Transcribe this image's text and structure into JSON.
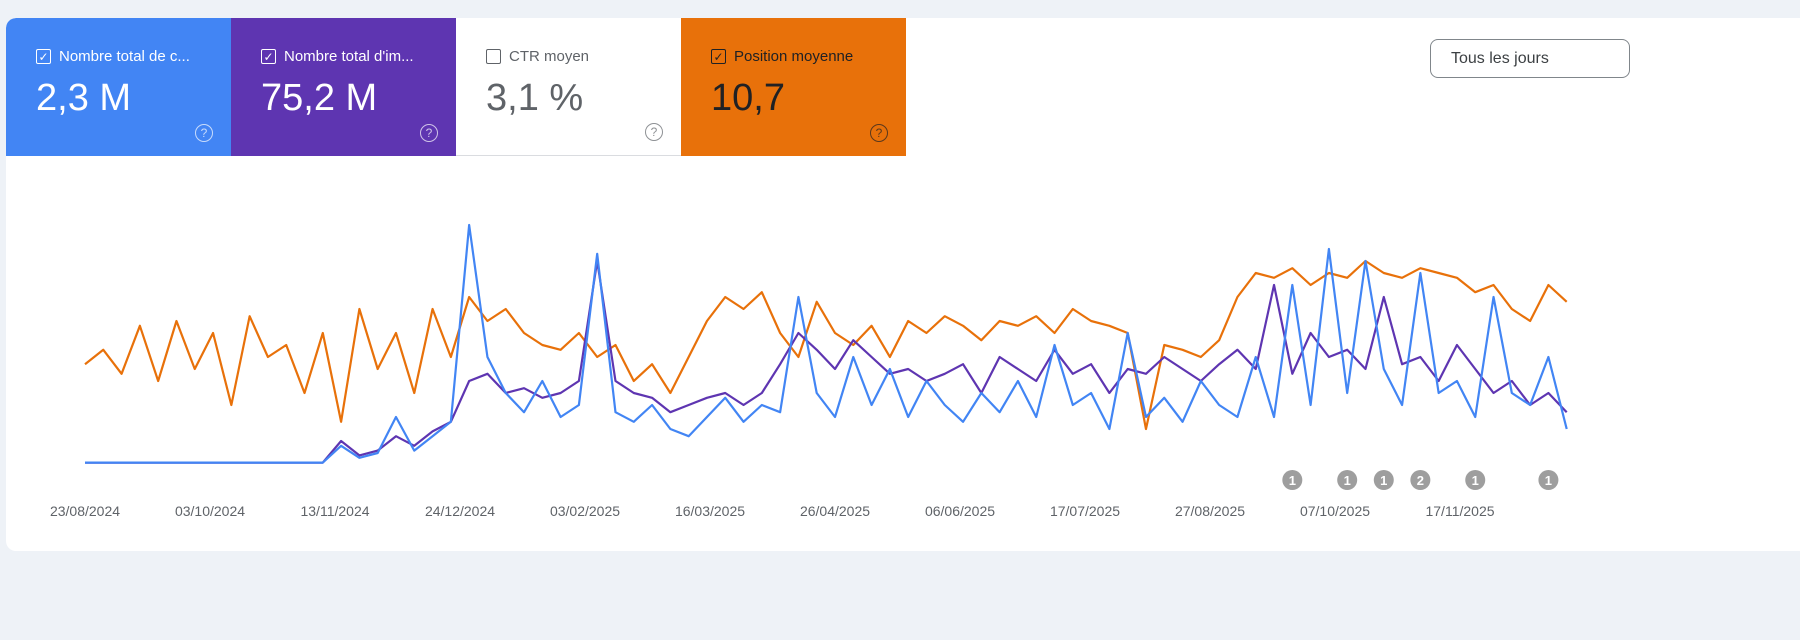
{
  "metrics": [
    {
      "label": "Nombre total de c...",
      "value": "2,3 M",
      "checked": true,
      "color": "#4285f4"
    },
    {
      "label": "Nombre total d'im...",
      "value": "75,2 M",
      "checked": true,
      "color": "#5e35b1"
    },
    {
      "label": "CTR moyen",
      "value": "3,1 %",
      "checked": false
    },
    {
      "label": "Position moyenne",
      "value": "10,7",
      "checked": true,
      "color": "#e8710a"
    }
  ],
  "help_icon": "?",
  "granularity_button": "Tous les jours",
  "chart_data": {
    "type": "line",
    "x_step_days": 6,
    "x_start": "23/08/2024",
    "xticks": [
      "23/08/2024",
      "03/10/2024",
      "13/11/2024",
      "24/12/2024",
      "03/02/2025",
      "16/03/2025",
      "26/04/2025",
      "06/06/2025",
      "17/07/2025",
      "27/08/2025",
      "07/10/2025",
      "17/11/2025"
    ],
    "ylim": [
      0,
      100
    ],
    "grid": false,
    "series": [
      {
        "name": "Position moyenne",
        "color": "#e8710a",
        "values": [
          42,
          48,
          38,
          58,
          35,
          60,
          40,
          55,
          25,
          62,
          45,
          50,
          30,
          55,
          18,
          65,
          40,
          55,
          30,
          65,
          45,
          70,
          60,
          65,
          55,
          50,
          48,
          55,
          45,
          50,
          35,
          42,
          30,
          45,
          60,
          70,
          65,
          72,
          55,
          45,
          68,
          55,
          50,
          58,
          45,
          60,
          55,
          62,
          58,
          52,
          60,
          58,
          62,
          55,
          65,
          60,
          58,
          55,
          15,
          50,
          48,
          45,
          52,
          70,
          80,
          78,
          82,
          75,
          80,
          78,
          85,
          80,
          78,
          82,
          80,
          78,
          72,
          75,
          65,
          60,
          75,
          68
        ]
      },
      {
        "name": "Nombre total d'impressions",
        "color": "#5e35b1",
        "values": [
          1,
          1,
          1,
          1,
          1,
          1,
          1,
          1,
          1,
          1,
          1,
          1,
          1,
          1,
          10,
          4,
          6,
          12,
          8,
          14,
          18,
          35,
          38,
          30,
          32,
          28,
          30,
          35,
          85,
          35,
          30,
          28,
          22,
          25,
          28,
          30,
          25,
          30,
          42,
          55,
          48,
          40,
          52,
          45,
          38,
          40,
          35,
          38,
          42,
          30,
          45,
          40,
          35,
          48,
          38,
          42,
          30,
          40,
          38,
          45,
          40,
          35,
          42,
          48,
          40,
          75,
          38,
          55,
          45,
          48,
          40,
          70,
          42,
          45,
          35,
          50,
          40,
          30,
          35,
          25,
          30,
          22
        ]
      },
      {
        "name": "Nombre total de clics",
        "color": "#4285f4",
        "values": [
          1,
          1,
          1,
          1,
          1,
          1,
          1,
          1,
          1,
          1,
          1,
          1,
          1,
          1,
          8,
          3,
          5,
          20,
          6,
          12,
          18,
          100,
          45,
          30,
          22,
          35,
          20,
          25,
          88,
          22,
          18,
          25,
          15,
          12,
          20,
          28,
          18,
          25,
          22,
          70,
          30,
          20,
          45,
          25,
          40,
          20,
          35,
          25,
          18,
          30,
          22,
          35,
          20,
          50,
          25,
          30,
          15,
          55,
          20,
          28,
          18,
          35,
          25,
          20,
          45,
          20,
          75,
          25,
          90,
          30,
          85,
          40,
          25,
          80,
          30,
          35,
          20,
          70,
          30,
          25,
          45,
          15
        ]
      }
    ],
    "annotations": [
      {
        "label": "1",
        "date_index": 66
      },
      {
        "label": "1",
        "date_index": 69
      },
      {
        "label": "1",
        "date_index": 71
      },
      {
        "label": "2",
        "date_index": 73
      },
      {
        "label": "1",
        "date_index": 76
      },
      {
        "label": "1",
        "date_index": 80
      }
    ]
  }
}
